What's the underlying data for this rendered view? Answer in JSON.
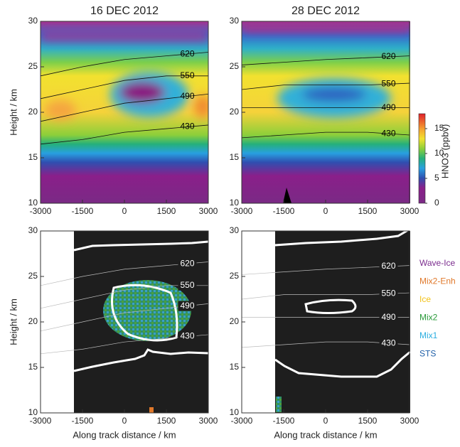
{
  "chart_data": [
    {
      "type": "heatmap",
      "title": "16 DEC 2012",
      "ylabel": "Height / km",
      "xlim": [
        -3000,
        3000
      ],
      "xticks": [
        -3000,
        -1500,
        0,
        1500,
        3000
      ],
      "ylim": [
        10,
        30
      ],
      "yticks": [
        10,
        15,
        20,
        25,
        30
      ],
      "contours": [
        {
          "level": 620,
          "x": [
            -3000,
            -1500,
            0,
            1500,
            3000
          ],
          "y": [
            24,
            25,
            25.8,
            26.2,
            26.6
          ]
        },
        {
          "level": 550,
          "x": [
            -3000,
            -1500,
            0,
            1500,
            3000
          ],
          "y": [
            21.5,
            22.5,
            23.5,
            24,
            24
          ]
        },
        {
          "level": 490,
          "x": [
            -3000,
            -1500,
            0,
            1500,
            3000
          ],
          "y": [
            19,
            20,
            21,
            21.5,
            22
          ]
        },
        {
          "level": 430,
          "x": [
            -3000,
            -1500,
            0,
            1500,
            3000
          ],
          "y": [
            16.5,
            17,
            17.8,
            18.2,
            18.6
          ]
        }
      ]
    },
    {
      "type": "heatmap",
      "title": "28 DEC 2012",
      "xlim": [
        -3000,
        3000
      ],
      "xticks": [
        -3000,
        -1500,
        0,
        1500,
        3000
      ],
      "ylim": [
        10,
        30
      ],
      "yticks": [
        10,
        15,
        20,
        25,
        30
      ],
      "contours": [
        {
          "level": 620,
          "x": [
            -3000,
            -1500,
            0,
            1500,
            3000
          ],
          "y": [
            25.2,
            25.5,
            25.8,
            26,
            26.2
          ]
        },
        {
          "level": 550,
          "x": [
            -3000,
            -1500,
            0,
            1500,
            3000
          ],
          "y": [
            22.5,
            23,
            23,
            23,
            23.2
          ]
        },
        {
          "level": 490,
          "x": [
            -3000,
            -1500,
            0,
            1500,
            3000
          ],
          "y": [
            20.5,
            20.5,
            20.5,
            20.5,
            20.5
          ]
        },
        {
          "level": 430,
          "x": [
            -3000,
            -1500,
            0,
            1500,
            3000
          ],
          "y": [
            17.2,
            17.5,
            17.8,
            17.8,
            17.5
          ]
        }
      ],
      "colorbar": {
        "label": "HNO3 (ppbv)",
        "lim": [
          0,
          18
        ],
        "ticks": [
          0,
          5,
          10,
          15
        ]
      }
    },
    {
      "type": "classification",
      "xlabel": "Along track distance / km",
      "ylabel": "Height / km",
      "xlim": [
        -3000,
        3000
      ],
      "xticks": [
        -3000,
        -1500,
        0,
        1500,
        3000
      ],
      "ylim": [
        10,
        30
      ],
      "yticks": [
        10,
        15,
        20,
        25,
        30
      ],
      "contours": [
        {
          "level": 620,
          "x": [
            -3000,
            -1500,
            0,
            1500,
            3000
          ],
          "y": [
            24,
            25,
            25.8,
            26.2,
            26.6
          ]
        },
        {
          "level": 550,
          "x": [
            -3000,
            -1500,
            0,
            1500,
            3000
          ],
          "y": [
            21.5,
            22.5,
            23.5,
            24,
            24
          ]
        },
        {
          "level": 490,
          "x": [
            -3000,
            -1500,
            0,
            1500,
            3000
          ],
          "y": [
            19,
            20,
            21,
            21.5,
            22
          ]
        },
        {
          "level": 430,
          "x": [
            -3000,
            -1500,
            0,
            1500,
            3000
          ],
          "y": [
            16.5,
            17,
            17.8,
            18.2,
            18.6
          ]
        }
      ]
    },
    {
      "type": "classification",
      "xlabel": "Along track distance / km",
      "xlim": [
        -3000,
        3000
      ],
      "xticks": [
        -3000,
        -1500,
        0,
        1500,
        3000
      ],
      "ylim": [
        10,
        30
      ],
      "yticks": [
        10,
        15,
        20,
        25,
        30
      ],
      "contours": [
        {
          "level": 620,
          "x": [
            -3000,
            -1500,
            0,
            1500,
            3000
          ],
          "y": [
            25.2,
            25.5,
            25.8,
            26,
            26.2
          ]
        },
        {
          "level": 550,
          "x": [
            -3000,
            -1500,
            0,
            1500,
            3000
          ],
          "y": [
            22.5,
            23,
            23,
            23,
            23.2
          ]
        },
        {
          "level": 490,
          "x": [
            -3000,
            -1500,
            0,
            1500,
            3000
          ],
          "y": [
            20.5,
            20.5,
            20.5,
            20.5,
            20.5
          ]
        },
        {
          "level": 430,
          "x": [
            -3000,
            -1500,
            0,
            1500,
            3000
          ],
          "y": [
            17.2,
            17.5,
            17.8,
            17.8,
            17.5
          ]
        }
      ],
      "legend": [
        {
          "name": "Wave-Ice",
          "color": "#7b2d8e"
        },
        {
          "name": "Mix2-Enh",
          "color": "#e0782a"
        },
        {
          "name": "Ice",
          "color": "#f2c21a"
        },
        {
          "name": "Mix2",
          "color": "#2a9a3a"
        },
        {
          "name": "Mix1",
          "color": "#2aaee0"
        },
        {
          "name": "STS",
          "color": "#1f5fa8"
        }
      ]
    }
  ]
}
